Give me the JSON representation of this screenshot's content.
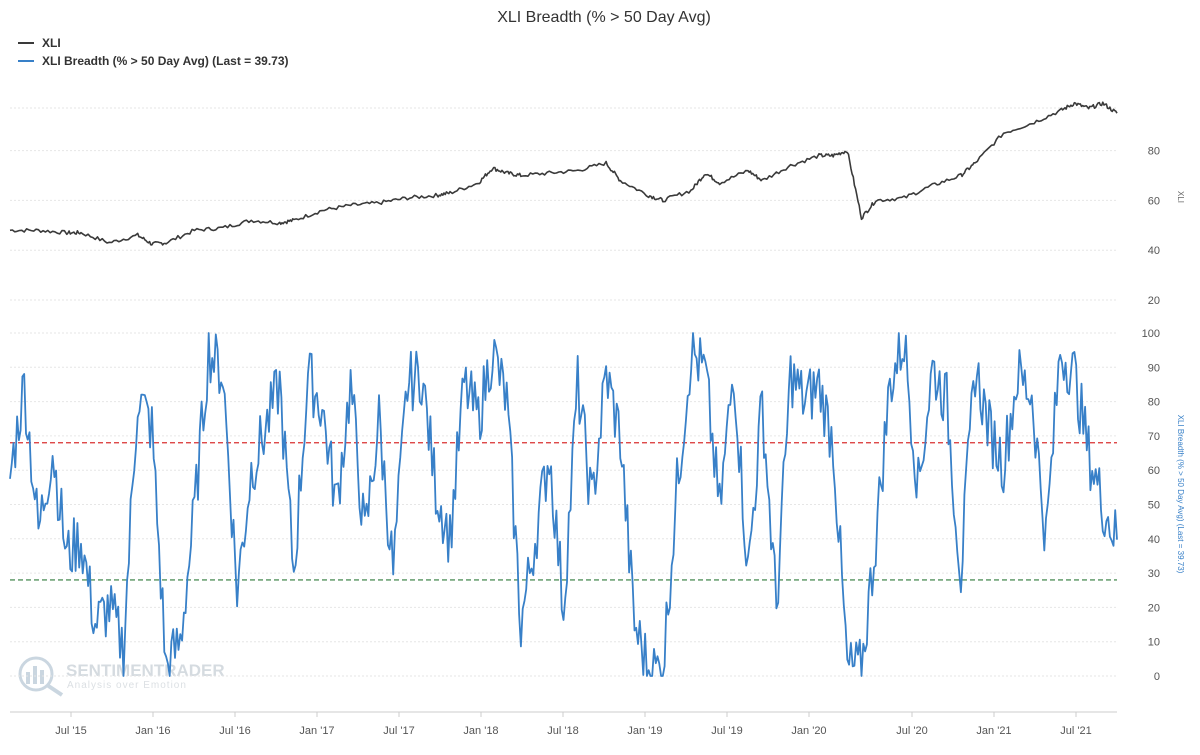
{
  "chart_data": {
    "type": "line",
    "title": "XLI Breadth (% > 50 Day Avg)",
    "legend": {
      "placement": "top-left",
      "entries": [
        {
          "label": "XLI",
          "color": "#3a3a3a"
        },
        {
          "label": "XLI Breadth (% > 50 Day Avg) (Last = 39.73)",
          "color": "#3880c8"
        }
      ]
    },
    "x_axis": {
      "ticks": [
        "Jul '15",
        "Jan '16",
        "Jul '16",
        "Jan '17",
        "Jul '17",
        "Jan '18",
        "Jul '18",
        "Jan '19",
        "Jul '19",
        "Jan '20",
        "Jul '20",
        "Jan '21",
        "Jul '21"
      ],
      "range": [
        "2015-03",
        "2021-09"
      ]
    },
    "panels": [
      {
        "id": "price",
        "ylabel": "XLI",
        "ylim": [
          20,
          100
        ],
        "yticks": [
          20,
          40,
          60,
          80
        ],
        "grid": true,
        "series": [
          {
            "name": "XLI",
            "color": "#3a3a3a",
            "x": [
              "2015-03",
              "2015-05",
              "2015-07",
              "2015-08",
              "2015-10",
              "2015-12",
              "2016-01",
              "2016-02",
              "2016-04",
              "2016-06",
              "2016-08",
              "2016-10",
              "2016-11",
              "2017-01",
              "2017-03",
              "2017-05",
              "2017-07",
              "2017-09",
              "2017-10",
              "2017-12",
              "2018-01",
              "2018-02",
              "2018-03",
              "2018-05",
              "2018-07",
              "2018-09",
              "2018-10",
              "2018-12",
              "2019-01",
              "2019-03",
              "2019-04",
              "2019-05",
              "2019-07",
              "2019-08",
              "2019-10",
              "2019-12",
              "2020-01",
              "2020-02",
              "2020-03",
              "2020-04",
              "2020-06",
              "2020-08",
              "2020-10",
              "2020-11",
              "2021-01",
              "2021-03",
              "2021-05",
              "2021-06",
              "2021-07",
              "2021-08",
              "2021-09"
            ],
            "values": [
              48,
              48,
              47,
              47,
              43,
              46,
              42.5,
              43,
              48,
              49,
              52,
              51,
              52,
              56,
              58,
              59,
              61,
              62,
              63,
              67,
              73,
              71,
              70,
              71,
              72,
              75,
              68,
              62,
              60,
              64,
              71,
              67,
              72,
              68,
              74,
              78,
              78,
              80,
              53,
              60,
              61,
              66,
              70,
              75,
              87,
              91,
              96,
              99,
              97,
              99,
              95
            ]
          }
        ]
      },
      {
        "id": "breadth",
        "ylabel": "XLI Breadth (% > 50 Day Avg) (Last = 39.73)",
        "ylim": [
          0,
          100
        ],
        "yticks": [
          0,
          10,
          20,
          30,
          40,
          50,
          60,
          70,
          80,
          90,
          100
        ],
        "grid": true,
        "reference_lines": [
          {
            "value": 68,
            "color": "#d93030",
            "style": "dashed"
          },
          {
            "value": 28,
            "color": "#2f7a3a",
            "style": "dashed"
          }
        ],
        "series": [
          {
            "name": "XLI Breadth (% > 50 Day Avg) (Last = 39.73)",
            "color": "#3880c8",
            "x": [
              "2015-03",
              "2015-04",
              "2015-05",
              "2015-06",
              "2015-07",
              "2015-08",
              "2015-09",
              "2015-10",
              "2015-11",
              "2015-12",
              "2016-01",
              "2016-02",
              "2016-03",
              "2016-04",
              "2016-05",
              "2016-06",
              "2016-07",
              "2016-08",
              "2016-09",
              "2016-10",
              "2016-11",
              "2016-12",
              "2017-01",
              "2017-02",
              "2017-03",
              "2017-04",
              "2017-05",
              "2017-06",
              "2017-07",
              "2017-08",
              "2017-09",
              "2017-10",
              "2017-11",
              "2017-12",
              "2018-01",
              "2018-02",
              "2018-03",
              "2018-04",
              "2018-05",
              "2018-06",
              "2018-07",
              "2018-08",
              "2018-09",
              "2018-10",
              "2018-11",
              "2018-12",
              "2019-01",
              "2019-02",
              "2019-03",
              "2019-04",
              "2019-05",
              "2019-06",
              "2019-07",
              "2019-08",
              "2019-09",
              "2019-10",
              "2019-11",
              "2019-12",
              "2020-01",
              "2020-02",
              "2020-03",
              "2020-04",
              "2020-05",
              "2020-06",
              "2020-07",
              "2020-08",
              "2020-09",
              "2020-10",
              "2020-11",
              "2020-12",
              "2021-01",
              "2021-02",
              "2021-03",
              "2021-04",
              "2021-05",
              "2021-06",
              "2021-07",
              "2021-08",
              "2021-09"
            ],
            "values": [
              58,
              85,
              42,
              66,
              35,
              40,
              15,
              20,
              8,
              82,
              72,
              2,
              10,
              48,
              95,
              88,
              25,
              60,
              72,
              85,
              30,
              88,
              78,
              50,
              85,
              40,
              75,
              30,
              85,
              88,
              55,
              40,
              85,
              75,
              95,
              80,
              15,
              40,
              65,
              20,
              85,
              50,
              88,
              70,
              15,
              2,
              2,
              55,
              95,
              88,
              48,
              90,
              30,
              80,
              20,
              88,
              80,
              85,
              68,
              2,
              2,
              40,
              85,
              98,
              55,
              90,
              80,
              30,
              90,
              72,
              62,
              88,
              82,
              40,
              95,
              88,
              65,
              50,
              39.73
            ]
          }
        ]
      }
    ]
  },
  "watermark": {
    "name": "SENTIMENTRADER",
    "tagline": "Analysis over Emotion"
  }
}
